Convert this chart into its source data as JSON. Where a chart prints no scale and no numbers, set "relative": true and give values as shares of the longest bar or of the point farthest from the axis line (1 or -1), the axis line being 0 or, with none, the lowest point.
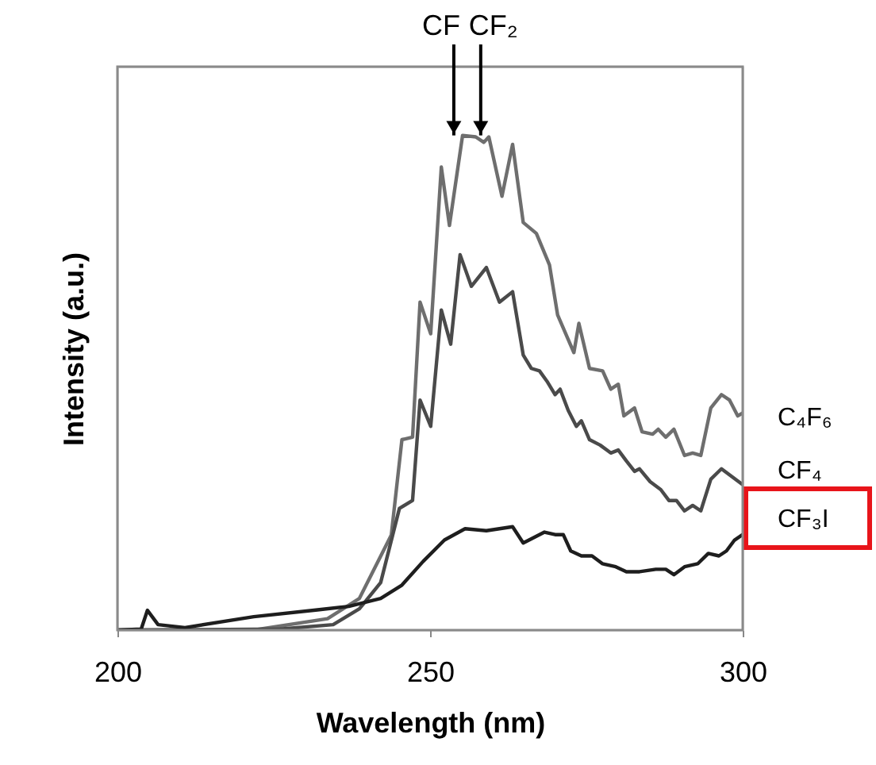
{
  "chart_data": {
    "type": "line",
    "relative": true,
    "xlabel": "Wavelength (nm)",
    "ylabel": "Intensity (a.u.)",
    "xlim": [
      200,
      300
    ],
    "xticks": [
      200,
      250,
      300
    ],
    "tick_labels": "x",
    "grid": false,
    "legend": false,
    "marker": "none",
    "line_style": "solid",
    "annotations": [
      {
        "text": "CF",
        "x": 253.8,
        "y": 1.0
      },
      {
        "text": "CF₂",
        "x": 258.1,
        "y": 1.0
      }
    ],
    "series": [
      {
        "name": "C₄F₆",
        "color": "#6e6e6e",
        "x": [
          200.0,
          221.8,
          233.6,
          238.7,
          243.8,
          245.5,
          247.2,
          248.4,
          250.1,
          251.8,
          253.1,
          255.2,
          257.3,
          258.6,
          259.4,
          261.5,
          263.2,
          264.9,
          267.0,
          269.1,
          270.4,
          273.0,
          273.8,
          275.5,
          277.6,
          278.9,
          280.1,
          281.0,
          282.7,
          283.9,
          285.6,
          286.5,
          287.7,
          289.0,
          290.7,
          292.0,
          293.3,
          294.9,
          296.6,
          297.9,
          299.2,
          300.0
        ],
        "values": [
          0,
          0,
          0.023,
          0.064,
          0.192,
          0.385,
          0.39,
          0.663,
          0.599,
          0.936,
          0.818,
          1.0,
          0.997,
          0.986,
          0.997,
          0.877,
          0.982,
          0.824,
          0.802,
          0.738,
          0.637,
          0.561,
          0.62,
          0.529,
          0.524,
          0.487,
          0.497,
          0.433,
          0.449,
          0.401,
          0.396,
          0.406,
          0.39,
          0.406,
          0.353,
          0.358,
          0.353,
          0.449,
          0.476,
          0.465,
          0.433,
          0.439
        ]
      },
      {
        "name": "CF₄",
        "color": "#4a4a4a",
        "x": [
          200.0,
          213.4,
          226.0,
          234.5,
          238.7,
          242.1,
          245.1,
          247.2,
          248.4,
          250.1,
          251.8,
          253.3,
          254.8,
          256.6,
          259.0,
          261.1,
          263.2,
          264.9,
          266.2,
          267.5,
          268.7,
          270.0,
          270.8,
          272.1,
          273.4,
          274.2,
          275.5,
          277.2,
          278.9,
          280.1,
          281.4,
          282.7,
          283.5,
          285.2,
          286.9,
          288.2,
          289.4,
          290.7,
          292.0,
          293.3,
          294.9,
          296.6,
          298.3,
          300.0
        ],
        "values": [
          0,
          0.001,
          0.002,
          0.011,
          0.043,
          0.096,
          0.246,
          0.262,
          0.465,
          0.412,
          0.647,
          0.578,
          0.759,
          0.695,
          0.733,
          0.663,
          0.684,
          0.556,
          0.529,
          0.524,
          0.503,
          0.476,
          0.487,
          0.444,
          0.412,
          0.423,
          0.385,
          0.374,
          0.358,
          0.364,
          0.342,
          0.321,
          0.326,
          0.3,
          0.284,
          0.262,
          0.262,
          0.241,
          0.252,
          0.241,
          0.305,
          0.326,
          0.31,
          0.294
        ]
      },
      {
        "name": "CF₃I",
        "color": "#1e1e1e",
        "x": [
          200.0,
          203.8,
          204.8,
          206.5,
          210.8,
          221.8,
          232.0,
          237.0,
          242.1,
          245.5,
          248.9,
          252.3,
          255.6,
          259.0,
          263.2,
          264.9,
          268.3,
          270.0,
          271.3,
          272.5,
          274.2,
          275.9,
          277.6,
          279.7,
          281.4,
          283.5,
          286.1,
          287.7,
          289.0,
          290.7,
          292.8,
          294.5,
          296.2,
          297.4,
          298.7,
          300.0
        ],
        "values": [
          0,
          0.002,
          0.04,
          0.011,
          0.005,
          0.027,
          0.041,
          0.048,
          0.064,
          0.091,
          0.139,
          0.182,
          0.205,
          0.201,
          0.209,
          0.176,
          0.198,
          0.193,
          0.193,
          0.16,
          0.15,
          0.15,
          0.134,
          0.128,
          0.118,
          0.118,
          0.123,
          0.123,
          0.112,
          0.128,
          0.134,
          0.155,
          0.15,
          0.16,
          0.182,
          0.193
        ]
      }
    ]
  }
}
